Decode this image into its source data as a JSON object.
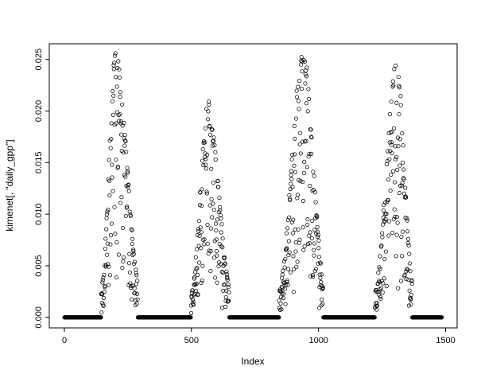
{
  "page": {
    "background": "#ffffff",
    "foreground": "#000000"
  },
  "chart_data": {
    "type": "scatter",
    "title": "",
    "xlabel": "Index",
    "ylabel": "kimenet[, \"daily_gpp\"]",
    "marker": "open-circle",
    "marker_color": "#000000",
    "grid": false,
    "legend": "none",
    "xlim": [
      0,
      1486
    ],
    "ylim": [
      0,
      0.0255
    ],
    "x_ticks": [
      0,
      500,
      1000,
      1500
    ],
    "y_ticks": [
      0.0,
      0.005,
      0.01,
      0.015,
      0.02,
      0.025
    ],
    "x_tick_labels": [
      "0",
      "500",
      "1000",
      "1500"
    ],
    "y_tick_labels": [
      "0.000",
      "0.005",
      "0.010",
      "0.015",
      "0.020",
      "0.025"
    ],
    "n_points": 1486,
    "baseline_value": 0,
    "description": "Daily GPP time series over four years: four bell-shaped growing-season peaks (maxima about 0.0255, 0.0205, 0.0255, 0.0245 near indices 202, 566, 938, 1306) separated by long runs of exact-zero values forming a thick band at y = 0.",
    "zero_runs": [
      [
        0,
        144
      ],
      [
        289,
        497
      ],
      [
        649,
        844
      ],
      [
        1019,
        1221
      ],
      [
        1369,
        1485
      ]
    ],
    "generator": {
      "seed": 20240507,
      "noise": 0.03,
      "scatter_exponent": 2.2,
      "scatter_depth": 0.78,
      "deep_drop_prob": 0.08,
      "deep_drop_factor": 0.45,
      "clip_min": 0.0002,
      "seasons": [
        {
          "start": 145,
          "peak": 202,
          "end": 288,
          "max": 0.0255
        },
        {
          "start": 498,
          "peak": 566,
          "end": 648,
          "max": 0.0205
        },
        {
          "start": 845,
          "peak": 938,
          "end": 1018,
          "max": 0.0255
        },
        {
          "start": 1222,
          "peak": 1306,
          "end": 1368,
          "max": 0.0245
        }
      ]
    }
  }
}
